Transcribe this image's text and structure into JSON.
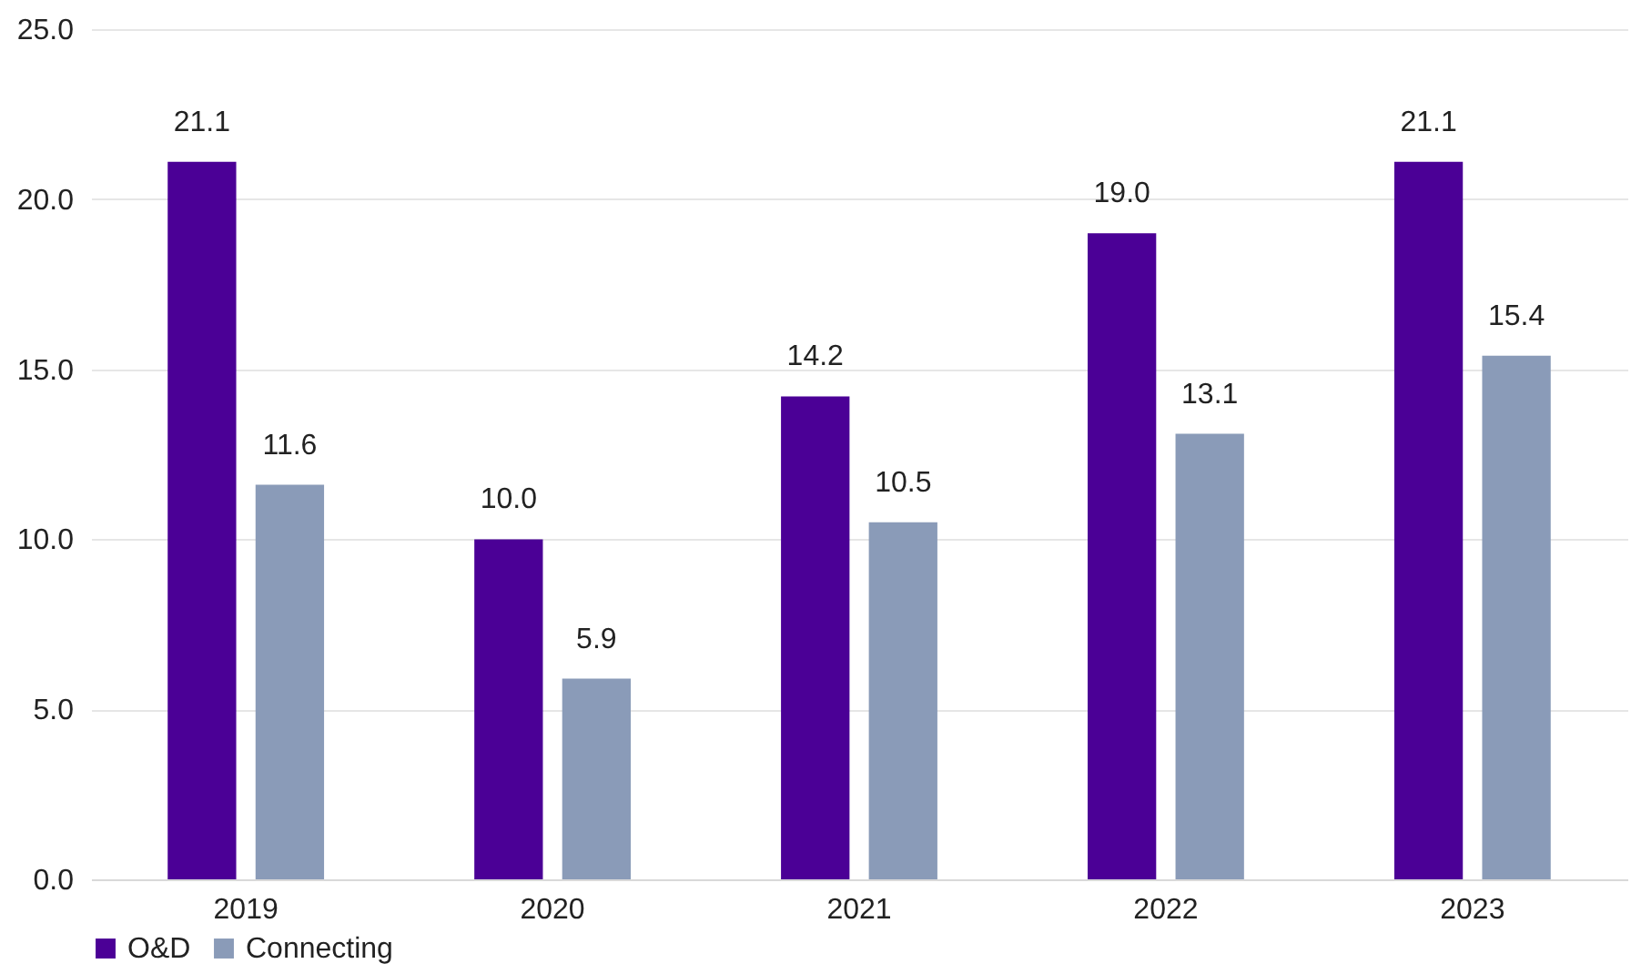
{
  "chart_data": {
    "type": "bar",
    "categories": [
      "2019",
      "2020",
      "2021",
      "2022",
      "2023"
    ],
    "series": [
      {
        "name": "O&D",
        "color": "#4b0096",
        "values": [
          21.1,
          10.0,
          14.2,
          19.0,
          21.1
        ],
        "value_labels": [
          "21.1",
          "10.0",
          "14.2",
          "19.0",
          "21.1"
        ]
      },
      {
        "name": "Connecting",
        "color": "#8a9bb8",
        "values": [
          11.6,
          5.9,
          10.5,
          13.1,
          15.4
        ],
        "value_labels": [
          "11.6",
          "5.9",
          "10.5",
          "13.1",
          "15.4"
        ]
      }
    ],
    "ylim": [
      0,
      25
    ],
    "yticks": [
      {
        "value": 0,
        "label": "0.0"
      },
      {
        "value": 5,
        "label": "5.0"
      },
      {
        "value": 10,
        "label": "10.0"
      },
      {
        "value": 15,
        "label": "15.0"
      },
      {
        "value": 20,
        "label": "20.0"
      },
      {
        "value": 25,
        "label": "25.0"
      }
    ],
    "grid": "y",
    "legend": "bottom"
  }
}
